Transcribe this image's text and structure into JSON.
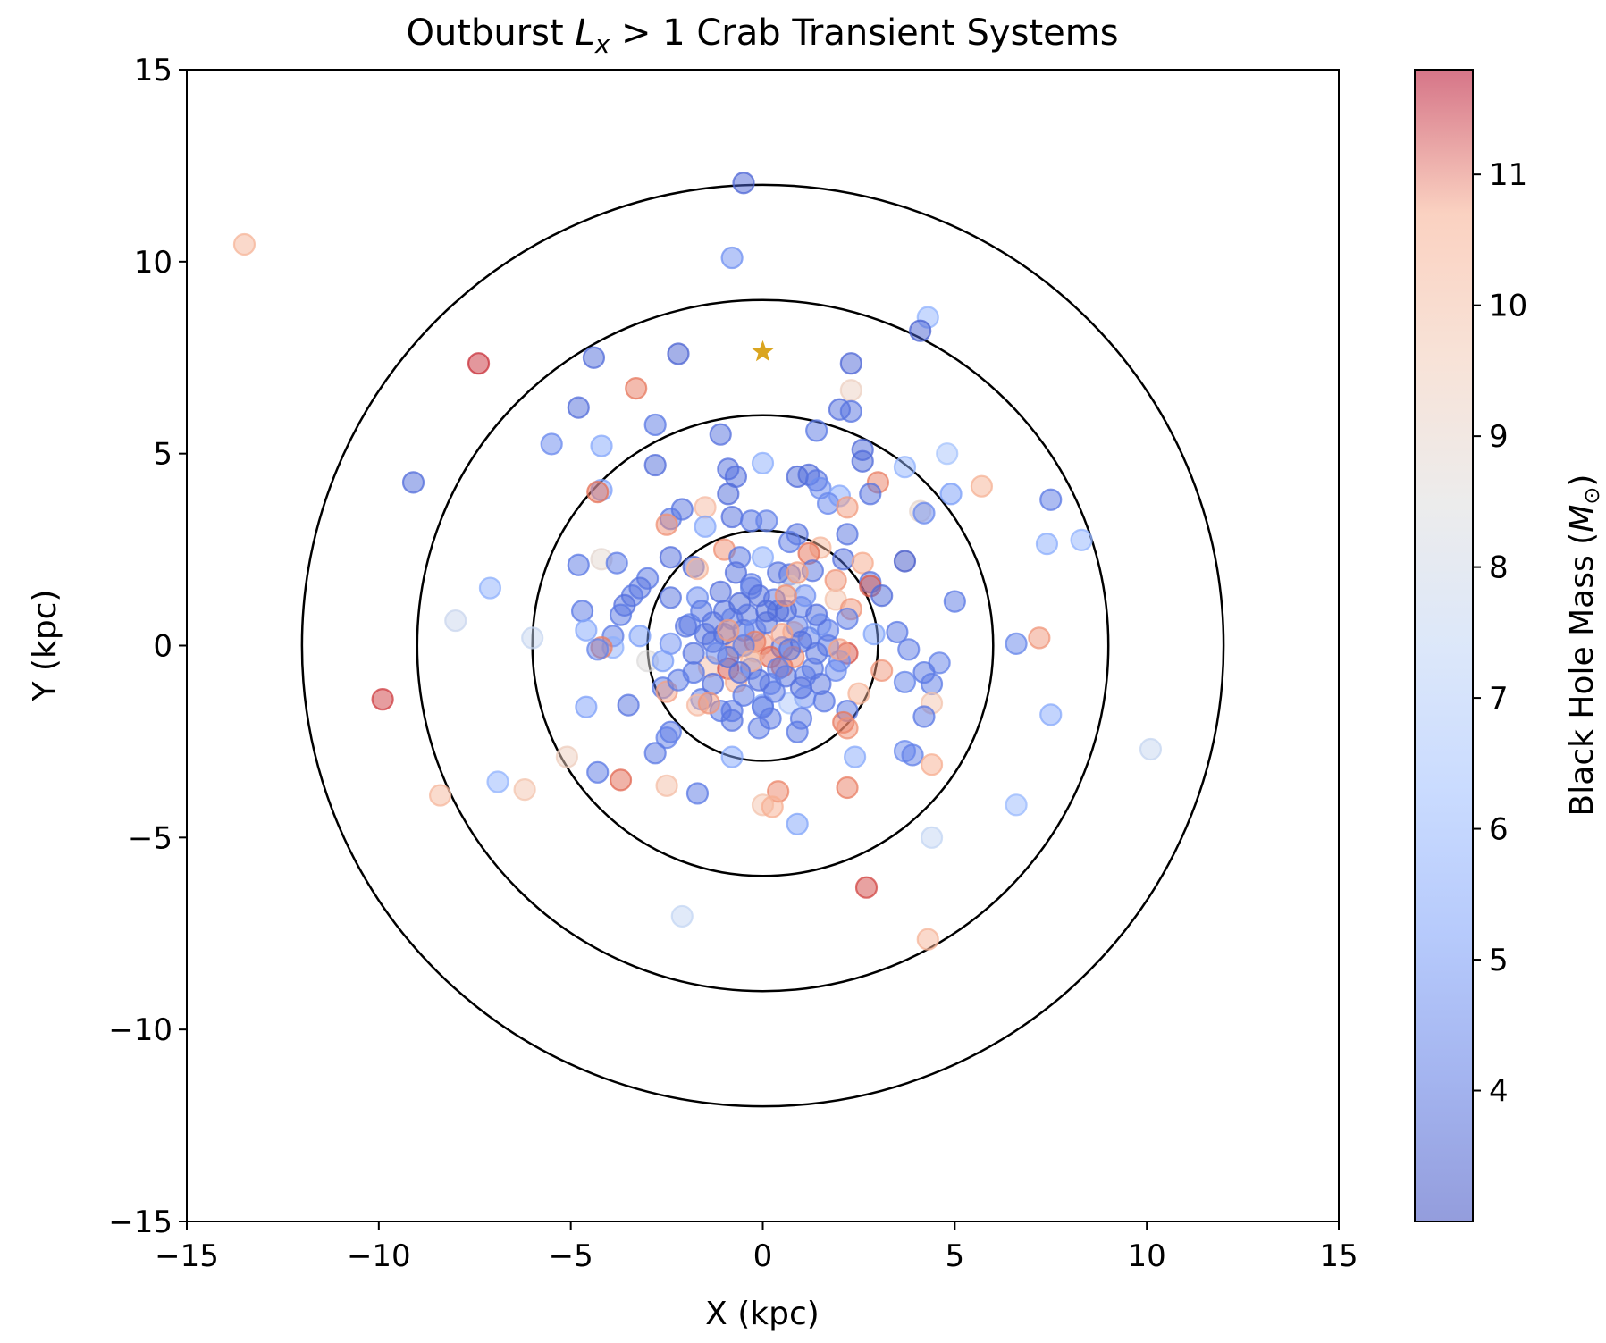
{
  "chart_data": {
    "type": "scatter",
    "title_prefix": "Outburst ",
    "title_math_base": "L",
    "title_math_sub": "x",
    "title_suffix": " > 1 Crab Transient Systems",
    "xlabel": "X (kpc)",
    "ylabel": "Y (kpc)",
    "xlim": [
      -15,
      15
    ],
    "ylim": [
      -15,
      15
    ],
    "xticks": [
      -15,
      -10,
      -5,
      0,
      5,
      10,
      15
    ],
    "yticks": [
      -15,
      -10,
      -5,
      0,
      5,
      10,
      15
    ],
    "xtick_labels": [
      "−15",
      "−10",
      "−5",
      "0",
      "5",
      "10",
      "15"
    ],
    "ytick_labels": [
      "−15",
      "−10",
      "−5",
      "0",
      "5",
      "10",
      "15"
    ],
    "grid": false,
    "circle_radii_kpc": [
      3,
      6,
      9,
      12
    ],
    "sun_marker": {
      "x": 0,
      "y": 7.65,
      "color": "#DAA520",
      "shape": "star"
    },
    "colorbar": {
      "label_text": "Black Hole Mass (",
      "label_math": "M",
      "label_sub": "⊙",
      "label_close": ")",
      "colormap": "coolwarm",
      "min": 3.0,
      "max": 11.8,
      "ticks": [
        4,
        5,
        6,
        7,
        8,
        9,
        10,
        11
      ],
      "tick_labels": [
        "4",
        "5",
        "6",
        "7",
        "8",
        "9",
        "10",
        "11"
      ]
    },
    "marker_alpha": 0.5,
    "points": [
      {
        "x": -13.5,
        "y": 10.45,
        "mass": 9.6
      },
      {
        "x": -0.5,
        "y": 12.05,
        "mass": 3.6
      },
      {
        "x": -0.8,
        "y": 10.1,
        "mass": 4.6
      },
      {
        "x": 4.3,
        "y": 8.55,
        "mass": 5.6
      },
      {
        "x": 4.1,
        "y": 8.2,
        "mass": 3.5
      },
      {
        "x": -7.4,
        "y": 7.35,
        "mass": 11.4
      },
      {
        "x": -4.4,
        "y": 7.5,
        "mass": 3.7
      },
      {
        "x": -2.2,
        "y": 7.6,
        "mass": 3.5
      },
      {
        "x": 2.3,
        "y": 7.35,
        "mass": 3.6
      },
      {
        "x": -3.3,
        "y": 6.7,
        "mass": 10.7
      },
      {
        "x": 2.3,
        "y": 6.65,
        "mass": 8.6
      },
      {
        "x": -4.8,
        "y": 6.2,
        "mass": 3.7
      },
      {
        "x": 2.0,
        "y": 6.15,
        "mass": 3.8
      },
      {
        "x": 2.3,
        "y": 6.1,
        "mass": 3.9
      },
      {
        "x": -2.8,
        "y": 5.75,
        "mass": 4.0
      },
      {
        "x": -1.1,
        "y": 5.5,
        "mass": 3.8
      },
      {
        "x": 1.4,
        "y": 5.6,
        "mass": 4.0
      },
      {
        "x": -5.5,
        "y": 5.25,
        "mass": 4.4
      },
      {
        "x": -4.2,
        "y": 5.2,
        "mass": 5.2
      },
      {
        "x": 2.6,
        "y": 5.1,
        "mass": 3.7
      },
      {
        "x": 2.6,
        "y": 4.8,
        "mass": 3.7
      },
      {
        "x": 4.8,
        "y": 5.0,
        "mass": 6.2
      },
      {
        "x": -2.8,
        "y": 4.7,
        "mass": 3.7
      },
      {
        "x": 0.0,
        "y": 4.75,
        "mass": 5.4
      },
      {
        "x": 3.7,
        "y": 4.65,
        "mass": 5.6
      },
      {
        "x": -0.9,
        "y": 4.6,
        "mass": 3.8
      },
      {
        "x": 1.2,
        "y": 4.45,
        "mass": 3.7
      },
      {
        "x": -9.1,
        "y": 4.25,
        "mass": 3.7
      },
      {
        "x": -0.7,
        "y": 4.4,
        "mass": 3.8
      },
      {
        "x": 0.9,
        "y": 4.4,
        "mass": 3.7
      },
      {
        "x": 1.4,
        "y": 4.3,
        "mass": 3.9
      },
      {
        "x": 3.0,
        "y": 4.25,
        "mass": 10.6
      },
      {
        "x": 5.7,
        "y": 4.15,
        "mass": 9.7
      },
      {
        "x": 1.5,
        "y": 4.1,
        "mass": 4.5
      },
      {
        "x": -4.2,
        "y": 4.05,
        "mass": 5.0
      },
      {
        "x": -4.3,
        "y": 4.0,
        "mass": 10.8
      },
      {
        "x": 2.8,
        "y": 3.95,
        "mass": 3.9
      },
      {
        "x": 4.9,
        "y": 3.95,
        "mass": 4.9
      },
      {
        "x": 2.0,
        "y": 3.9,
        "mass": 5.2
      },
      {
        "x": -0.9,
        "y": 3.95,
        "mass": 3.7
      },
      {
        "x": 7.5,
        "y": 3.8,
        "mass": 4.0
      },
      {
        "x": 1.7,
        "y": 3.7,
        "mass": 4.4
      },
      {
        "x": 2.2,
        "y": 3.6,
        "mass": 10.1
      },
      {
        "x": -1.5,
        "y": 3.6,
        "mass": 9.4
      },
      {
        "x": -2.1,
        "y": 3.55,
        "mass": 3.9
      },
      {
        "x": 4.1,
        "y": 3.5,
        "mass": 8.3
      },
      {
        "x": 4.2,
        "y": 3.45,
        "mass": 4.4
      },
      {
        "x": -2.4,
        "y": 3.3,
        "mass": 4.0
      },
      {
        "x": -0.8,
        "y": 3.35,
        "mass": 3.8
      },
      {
        "x": -0.3,
        "y": 3.25,
        "mass": 4.0
      },
      {
        "x": 0.1,
        "y": 3.25,
        "mass": 4.2
      },
      {
        "x": -2.5,
        "y": 3.15,
        "mass": 10.3
      },
      {
        "x": -1.5,
        "y": 3.1,
        "mass": 5.2
      },
      {
        "x": 0.9,
        "y": 2.9,
        "mass": 3.9
      },
      {
        "x": 2.2,
        "y": 2.9,
        "mass": 3.9
      },
      {
        "x": 7.4,
        "y": 2.65,
        "mass": 5.4
      },
      {
        "x": 8.3,
        "y": 2.75,
        "mass": 5.6
      },
      {
        "x": 0.7,
        "y": 2.7,
        "mass": 4.1
      },
      {
        "x": 1.5,
        "y": 2.55,
        "mass": 9.5
      },
      {
        "x": -1.0,
        "y": 2.5,
        "mass": 10.3
      },
      {
        "x": -0.6,
        "y": 2.3,
        "mass": 4.0
      },
      {
        "x": 0.0,
        "y": 2.3,
        "mass": 5.4
      },
      {
        "x": -2.4,
        "y": 2.3,
        "mass": 3.8
      },
      {
        "x": 1.2,
        "y": 2.4,
        "mass": 10.8
      },
      {
        "x": 2.1,
        "y": 2.25,
        "mass": 3.8
      },
      {
        "x": -4.2,
        "y": 2.25,
        "mass": 8.2
      },
      {
        "x": -3.8,
        "y": 2.15,
        "mass": 4.1
      },
      {
        "x": 3.7,
        "y": 2.2,
        "mass": 3.2
      },
      {
        "x": -4.8,
        "y": 2.1,
        "mass": 4.0
      },
      {
        "x": -1.8,
        "y": 2.05,
        "mass": 3.7
      },
      {
        "x": -1.7,
        "y": 2.0,
        "mass": 9.6
      },
      {
        "x": 1.3,
        "y": 1.95,
        "mass": 3.9
      },
      {
        "x": 2.6,
        "y": 2.15,
        "mass": 9.9
      },
      {
        "x": -3.0,
        "y": 1.75,
        "mass": 4.0
      },
      {
        "x": 0.7,
        "y": 1.85,
        "mass": 3.9
      },
      {
        "x": 1.9,
        "y": 1.7,
        "mass": 10.2
      },
      {
        "x": 2.8,
        "y": 1.65,
        "mass": 3.9
      },
      {
        "x": 2.8,
        "y": 1.55,
        "mass": 11.0
      },
      {
        "x": -7.1,
        "y": 1.5,
        "mass": 5.5
      },
      {
        "x": -3.2,
        "y": 1.5,
        "mass": 3.9
      },
      {
        "x": -0.3,
        "y": 1.5,
        "mass": 4.2
      },
      {
        "x": 0.7,
        "y": 1.55,
        "mass": 7.6
      },
      {
        "x": -3.4,
        "y": 1.3,
        "mass": 4.0
      },
      {
        "x": 3.1,
        "y": 1.3,
        "mass": 3.7
      },
      {
        "x": -2.4,
        "y": 1.25,
        "mass": 3.9
      },
      {
        "x": 5.0,
        "y": 1.15,
        "mass": 4.0
      },
      {
        "x": -1.7,
        "y": 1.25,
        "mass": 4.5
      },
      {
        "x": 1.9,
        "y": 1.2,
        "mass": 9.1
      },
      {
        "x": -3.6,
        "y": 1.05,
        "mass": 3.8
      },
      {
        "x": -4.7,
        "y": 0.9,
        "mass": 4.0
      },
      {
        "x": -3.7,
        "y": 0.8,
        "mass": 4.0
      },
      {
        "x": 2.3,
        "y": 0.95,
        "mass": 10.2
      },
      {
        "x": 1.0,
        "y": 1.0,
        "mass": 4.2
      },
      {
        "x": -8.0,
        "y": 0.65,
        "mass": 7.2
      },
      {
        "x": -1.0,
        "y": 0.9,
        "mass": 3.9
      },
      {
        "x": 0.4,
        "y": 0.9,
        "mass": 3.8
      },
      {
        "x": -4.6,
        "y": 0.4,
        "mass": 5.2
      },
      {
        "x": -1.9,
        "y": 0.55,
        "mass": 4.3
      },
      {
        "x": 1.5,
        "y": 0.55,
        "mass": 4.9
      },
      {
        "x": 2.2,
        "y": 0.7,
        "mass": 4.1
      },
      {
        "x": -0.5,
        "y": 0.4,
        "mass": 3.9
      },
      {
        "x": 0.8,
        "y": 0.35,
        "mass": 9.8
      },
      {
        "x": 1.7,
        "y": 0.4,
        "mass": 4.2
      },
      {
        "x": 3.5,
        "y": 0.35,
        "mass": 4.0
      },
      {
        "x": -6.0,
        "y": 0.2,
        "mass": 7.1
      },
      {
        "x": -3.9,
        "y": 0.25,
        "mass": 4.1
      },
      {
        "x": -3.2,
        "y": 0.25,
        "mass": 4.9
      },
      {
        "x": 2.9,
        "y": 0.3,
        "mass": 5.1
      },
      {
        "x": -1.3,
        "y": 0.1,
        "mass": 3.8
      },
      {
        "x": 0.0,
        "y": 0.05,
        "mass": 10.0
      },
      {
        "x": 1.2,
        "y": 0.2,
        "mass": 4.3
      },
      {
        "x": 7.2,
        "y": 0.2,
        "mass": 10.2
      },
      {
        "x": 6.6,
        "y": 0.05,
        "mass": 4.3
      },
      {
        "x": -2.4,
        "y": 0.05,
        "mass": 4.6
      },
      {
        "x": -0.7,
        "y": -0.05,
        "mass": 10.3
      },
      {
        "x": 0.5,
        "y": -0.05,
        "mass": 4.0
      },
      {
        "x": -3.9,
        "y": -0.05,
        "mass": 5.5
      },
      {
        "x": -4.2,
        "y": -0.05,
        "mass": 10.6
      },
      {
        "x": -4.3,
        "y": -0.1,
        "mass": 4.3
      },
      {
        "x": 2.2,
        "y": -0.2,
        "mass": 11.1
      },
      {
        "x": 3.8,
        "y": -0.1,
        "mass": 4.1
      },
      {
        "x": -0.2,
        "y": -0.15,
        "mass": 8.9
      },
      {
        "x": 1.4,
        "y": -0.2,
        "mass": 3.9
      },
      {
        "x": -3.0,
        "y": -0.4,
        "mass": 7.9
      },
      {
        "x": 4.6,
        "y": -0.45,
        "mass": 4.2
      },
      {
        "x": -2.6,
        "y": -0.4,
        "mass": 4.9
      },
      {
        "x": 2.0,
        "y": -0.4,
        "mass": 4.5
      },
      {
        "x": -1.4,
        "y": -0.55,
        "mass": 9.3
      },
      {
        "x": -0.9,
        "y": -0.6,
        "mass": 11.1
      },
      {
        "x": 0.5,
        "y": -0.55,
        "mass": 10.9
      },
      {
        "x": -0.3,
        "y": -0.6,
        "mass": 4.3
      },
      {
        "x": 3.1,
        "y": -0.65,
        "mass": 10.2
      },
      {
        "x": 1.9,
        "y": -0.65,
        "mass": 4.4
      },
      {
        "x": 4.2,
        "y": -0.7,
        "mass": 4.0
      },
      {
        "x": -1.8,
        "y": -0.7,
        "mass": 4.0
      },
      {
        "x": 1.1,
        "y": -0.8,
        "mass": 4.2
      },
      {
        "x": 3.7,
        "y": -0.95,
        "mass": 4.3
      },
      {
        "x": -0.7,
        "y": -0.95,
        "mass": 9.8
      },
      {
        "x": 0.2,
        "y": -1.0,
        "mass": 4.3
      },
      {
        "x": 4.4,
        "y": -1.0,
        "mass": 4.1
      },
      {
        "x": -2.6,
        "y": -1.1,
        "mass": 4.0
      },
      {
        "x": -2.5,
        "y": -1.2,
        "mass": 10.0
      },
      {
        "x": 2.5,
        "y": -1.25,
        "mass": 9.6
      },
      {
        "x": 1.1,
        "y": -1.35,
        "mass": 4.6
      },
      {
        "x": -9.9,
        "y": -1.4,
        "mass": 11.3
      },
      {
        "x": -1.6,
        "y": -1.4,
        "mass": 4.0
      },
      {
        "x": -3.5,
        "y": -1.55,
        "mass": 3.9
      },
      {
        "x": -1.7,
        "y": -1.55,
        "mass": 9.4
      },
      {
        "x": 0.7,
        "y": -1.5,
        "mass": 6.3
      },
      {
        "x": 1.6,
        "y": -1.45,
        "mass": 4.0
      },
      {
        "x": 4.4,
        "y": -1.5,
        "mass": 9.1
      },
      {
        "x": -4.6,
        "y": -1.6,
        "mass": 5.0
      },
      {
        "x": 0.0,
        "y": -1.55,
        "mass": 5.4
      },
      {
        "x": -1.1,
        "y": -1.7,
        "mass": 4.0
      },
      {
        "x": 2.2,
        "y": -1.7,
        "mass": 4.0
      },
      {
        "x": 7.5,
        "y": -1.8,
        "mass": 5.3
      },
      {
        "x": 4.2,
        "y": -1.85,
        "mass": 4.0
      },
      {
        "x": -0.8,
        "y": -1.95,
        "mass": 3.9
      },
      {
        "x": 1.0,
        "y": -1.9,
        "mass": 4.1
      },
      {
        "x": 2.1,
        "y": -2.0,
        "mass": 10.7
      },
      {
        "x": 2.2,
        "y": -2.15,
        "mass": 10.3
      },
      {
        "x": -0.1,
        "y": -2.15,
        "mass": 4.1
      },
      {
        "x": 0.9,
        "y": -2.25,
        "mass": 4.0
      },
      {
        "x": -2.4,
        "y": -2.25,
        "mass": 4.0
      },
      {
        "x": -2.5,
        "y": -2.4,
        "mass": 4.2
      },
      {
        "x": 10.1,
        "y": -2.7,
        "mass": 7.1
      },
      {
        "x": 3.7,
        "y": -2.75,
        "mass": 4.4
      },
      {
        "x": 3.9,
        "y": -2.85,
        "mass": 4.2
      },
      {
        "x": -2.8,
        "y": -2.8,
        "mass": 4.0
      },
      {
        "x": -0.8,
        "y": -2.9,
        "mass": 5.2
      },
      {
        "x": 2.4,
        "y": -2.9,
        "mass": 5.3
      },
      {
        "x": -5.1,
        "y": -2.9,
        "mass": 8.7
      },
      {
        "x": 4.4,
        "y": -3.1,
        "mass": 9.8
      },
      {
        "x": -4.3,
        "y": -3.3,
        "mass": 4.0
      },
      {
        "x": -3.7,
        "y": -3.5,
        "mass": 10.9
      },
      {
        "x": -6.9,
        "y": -3.55,
        "mass": 5.6
      },
      {
        "x": -2.5,
        "y": -3.65,
        "mass": 9.3
      },
      {
        "x": -6.2,
        "y": -3.75,
        "mass": 9.1
      },
      {
        "x": 2.2,
        "y": -3.7,
        "mass": 10.6
      },
      {
        "x": 0.4,
        "y": -3.8,
        "mass": 10.5
      },
      {
        "x": -1.7,
        "y": -3.85,
        "mass": 4.0
      },
      {
        "x": -8.4,
        "y": -3.9,
        "mass": 9.5
      },
      {
        "x": 0.0,
        "y": -4.15,
        "mass": 9.1
      },
      {
        "x": 0.25,
        "y": -4.2,
        "mass": 9.8
      },
      {
        "x": 6.6,
        "y": -4.15,
        "mass": 5.8
      },
      {
        "x": 0.9,
        "y": -4.65,
        "mass": 5.1
      },
      {
        "x": 4.4,
        "y": -5.0,
        "mass": 7.0
      },
      {
        "x": 2.7,
        "y": -6.3,
        "mass": 11.2
      },
      {
        "x": -2.1,
        "y": -7.05,
        "mass": 7.0
      },
      {
        "x": 4.3,
        "y": -7.65,
        "mass": 9.6
      },
      {
        "x": -1.3,
        "y": 0.6,
        "mass": 3.8
      },
      {
        "x": -1.0,
        "y": 0.3,
        "mass": 3.7
      },
      {
        "x": -0.8,
        "y": 0.7,
        "mass": 4.1
      },
      {
        "x": -0.6,
        "y": 1.1,
        "mass": 3.7
      },
      {
        "x": -0.4,
        "y": 0.8,
        "mass": 3.9
      },
      {
        "x": -0.2,
        "y": 0.4,
        "mass": 4.5
      },
      {
        "x": 0.1,
        "y": 0.6,
        "mass": 3.8
      },
      {
        "x": 0.3,
        "y": 1.2,
        "mass": 4.0
      },
      {
        "x": 0.6,
        "y": 0.9,
        "mass": 3.7
      },
      {
        "x": 0.9,
        "y": 0.5,
        "mass": 4.2
      },
      {
        "x": 1.0,
        "y": 0.1,
        "mass": 3.8
      },
      {
        "x": 0.8,
        "y": -0.3,
        "mass": 10.4
      },
      {
        "x": 0.6,
        "y": -0.8,
        "mass": 3.9
      },
      {
        "x": 0.3,
        "y": -1.2,
        "mass": 4.1
      },
      {
        "x": -0.1,
        "y": -0.9,
        "mass": 3.8
      },
      {
        "x": -0.5,
        "y": -1.3,
        "mass": 4.0
      },
      {
        "x": -0.9,
        "y": -0.3,
        "mass": 3.7
      },
      {
        "x": -1.2,
        "y": -0.2,
        "mass": 4.3
      },
      {
        "x": -1.5,
        "y": 0.3,
        "mass": 3.9
      },
      {
        "x": -1.6,
        "y": 0.9,
        "mass": 4.0
      },
      {
        "x": -1.1,
        "y": 1.4,
        "mass": 3.8
      },
      {
        "x": -0.3,
        "y": 1.6,
        "mass": 4.1
      },
      {
        "x": 0.4,
        "y": 1.9,
        "mass": 3.9
      },
      {
        "x": 1.1,
        "y": 1.3,
        "mass": 4.6
      },
      {
        "x": 1.4,
        "y": 0.8,
        "mass": 3.8
      },
      {
        "x": 1.3,
        "y": -0.6,
        "mass": 4.0
      },
      {
        "x": 1.0,
        "y": -1.1,
        "mass": 3.8
      },
      {
        "x": 0.0,
        "y": -1.6,
        "mass": 3.9
      },
      {
        "x": -0.8,
        "y": -1.7,
        "mass": 4.0
      },
      {
        "x": -1.3,
        "y": -1.0,
        "mass": 3.8
      },
      {
        "x": -0.2,
        "y": 0.1,
        "mass": 10.6
      },
      {
        "x": 0.2,
        "y": -0.3,
        "mass": 10.9
      },
      {
        "x": -0.5,
        "y": 0.0,
        "mass": 4.1
      },
      {
        "x": 0.5,
        "y": 0.3,
        "mass": 10.0
      },
      {
        "x": -0.3,
        "y": -0.4,
        "mass": 9.7
      },
      {
        "x": 0.1,
        "y": 0.9,
        "mass": 3.7
      },
      {
        "x": -0.9,
        "y": 0.4,
        "mass": 10.1
      },
      {
        "x": 0.7,
        "y": -0.1,
        "mass": 3.9
      },
      {
        "x": -0.6,
        "y": -0.7,
        "mass": 3.8
      },
      {
        "x": 0.4,
        "y": -0.6,
        "mass": 4.2
      },
      {
        "x": -1.8,
        "y": -0.2,
        "mass": 3.9
      },
      {
        "x": 1.7,
        "y": 0.0,
        "mass": 4.0
      },
      {
        "x": -0.1,
        "y": 1.3,
        "mass": 3.8
      },
      {
        "x": 0.2,
        "y": -1.9,
        "mass": 4.0
      },
      {
        "x": -2.0,
        "y": 0.5,
        "mass": 3.9
      },
      {
        "x": 2.0,
        "y": -0.1,
        "mass": 10.0
      },
      {
        "x": -0.7,
        "y": 1.9,
        "mass": 3.8
      },
      {
        "x": 0.9,
        "y": 1.9,
        "mass": 10.1
      },
      {
        "x": 0.6,
        "y": 1.3,
        "mass": 10.3
      },
      {
        "x": -1.4,
        "y": -1.5,
        "mass": 10.2
      },
      {
        "x": 1.5,
        "y": -1.0,
        "mass": 3.9
      },
      {
        "x": -2.2,
        "y": -0.9,
        "mass": 4.1
      }
    ]
  }
}
